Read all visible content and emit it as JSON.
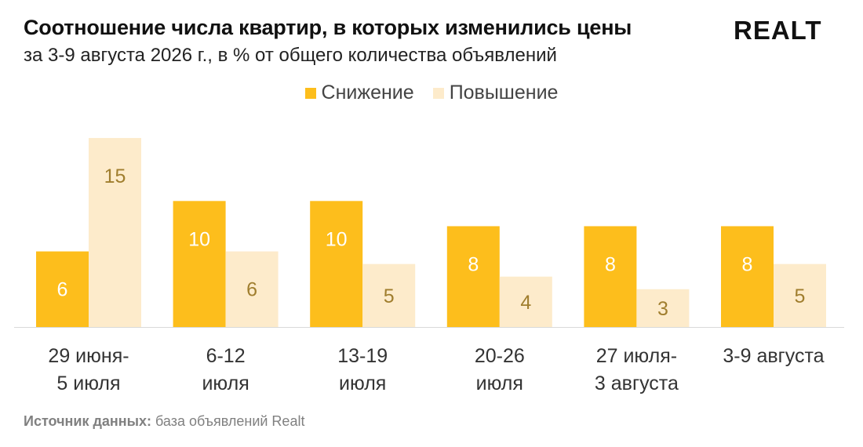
{
  "header": {
    "title": "Соотношение числа квартир, в которых изменились цены",
    "subtitle": "за 3-9 августа 2026 г., в % от общего количества объявлений",
    "logo": "REALT"
  },
  "footer": {
    "source_label": "Источник данных:",
    "source_text": " база объявлений Realt"
  },
  "colors": {
    "decrease": "#FDBE1C",
    "increase": "#FDEBCB",
    "label_on_dark": "#ffffff",
    "label_on_light": "#A07E2E",
    "axis": "#D9D9D9",
    "tick_text": "#333333"
  },
  "chart_data": {
    "type": "bar",
    "title": "Соотношение числа квартир, в которых изменились цены",
    "subtitle": "за 3-9 августа 2026 г., в % от общего количества объявлений",
    "xlabel": "",
    "ylabel": "",
    "ylim": [
      0,
      15
    ],
    "grid": false,
    "legend_position": "top-center",
    "categories": [
      [
        "29 июня-",
        "5 июля"
      ],
      [
        "6-12",
        "июля"
      ],
      [
        "13-19",
        "июля"
      ],
      [
        "20-26",
        "июля"
      ],
      [
        "27 июля-",
        "3 августа"
      ],
      [
        "3-9 августа"
      ]
    ],
    "series": [
      {
        "name": "Снижение",
        "values": [
          6,
          10,
          10,
          8,
          8,
          8
        ]
      },
      {
        "name": "Повышение",
        "values": [
          15,
          6,
          5,
          4,
          3,
          5
        ]
      }
    ]
  }
}
